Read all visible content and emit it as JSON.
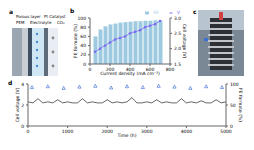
{
  "panels": {
    "a": {
      "label": "a",
      "texts": [
        "Porous layer",
        "PEM",
        "Electrolyte",
        "Pt Catalyst",
        "CO₂"
      ]
    },
    "c": {
      "label": "c"
    }
  },
  "chart_data": [
    {
      "type": "bar",
      "title": "b",
      "x_label": "Current density (mA cm⁻²)",
      "y_label": "FE formate (%)",
      "y2_label": "Cell voltage (V)",
      "x": [
        50,
        100,
        150,
        200,
        250,
        300,
        350,
        400,
        450,
        500,
        550,
        600,
        650,
        700
      ],
      "xlim": [
        0,
        800
      ],
      "xticks": [
        0,
        200,
        400,
        600,
        800
      ],
      "ylim": [
        0,
        100
      ],
      "yticks": [
        0,
        20,
        40,
        60,
        80,
        100
      ],
      "y2lim": [
        1.5,
        3
      ],
      "y2ticks": [
        1.5,
        {
          "value": 2,
          "label": "2.0"
        },
        2.5,
        {
          "value": 3,
          "label": "3.0"
        }
      ],
      "grid": false,
      "legend": "top",
      "series": [
        {
          "name": "FE",
          "type": "bar",
          "color": "#9ecae1",
          "values": [
            60,
            75,
            82,
            86,
            88,
            90,
            91,
            92,
            93,
            93,
            94,
            94,
            95,
            95
          ]
        },
        {
          "name": "V",
          "type": "line",
          "axis": "y2",
          "marker": "circle",
          "color": "#7b68ee",
          "values": [
            1.9,
            2.0,
            2.1,
            2.2,
            2.3,
            2.35,
            2.4,
            2.5,
            2.55,
            2.6,
            2.7,
            2.75,
            2.8,
            2.9
          ]
        }
      ]
    },
    {
      "type": "line",
      "title": "d",
      "x_label": "Time (h)",
      "y_label": "Cell voltage (V)",
      "y2_label": "FE formate (%)",
      "xlim": [
        0,
        5000
      ],
      "xticks": [
        0,
        1000,
        2000,
        3000,
        4000,
        5000
      ],
      "ylim": [
        0,
        4
      ],
      "yticks": [
        0,
        2,
        4
      ],
      "y2lim": [
        0,
        100
      ],
      "y2ticks": [
        0,
        50,
        100
      ],
      "grid": false,
      "series": [
        {
          "name": "Cell voltage",
          "type": "line",
          "marker": "none",
          "color": "#000000",
          "x": [
            0,
            125,
            250,
            375,
            500,
            625,
            750,
            875,
            1000,
            1125,
            1250,
            1375,
            1500,
            1625,
            1750,
            1875,
            2000,
            2125,
            2250,
            2375,
            2500,
            2625,
            2750,
            2875,
            3000,
            3125,
            3250,
            3375,
            3500,
            3625,
            3750,
            3875,
            4000,
            4125,
            4250,
            4375,
            4500,
            4625,
            4750,
            4875,
            5000
          ],
          "values": [
            2.3,
            2.2,
            2.6,
            2.2,
            2.3,
            2.2,
            2.5,
            2.2,
            2.3,
            2.2,
            2.2,
            2.6,
            2.2,
            2.3,
            2.2,
            2.2,
            2.5,
            2.2,
            2.3,
            2.2,
            2.3,
            2.7,
            2.2,
            2.2,
            2.3,
            2.2,
            2.5,
            2.2,
            2.3,
            2.2,
            2.2,
            2.6,
            2.2,
            2.3,
            2.2,
            2.4,
            2.2,
            2.2,
            2.5,
            2.2,
            2.3
          ]
        },
        {
          "name": "FE formate",
          "type": "scatter",
          "axis": "y2",
          "marker": "triangle",
          "color": "#2f5fd0",
          "x": [
            100,
            500,
            900,
            1300,
            1700,
            2100,
            2500,
            2900,
            3300,
            3700,
            4100,
            4500,
            4900
          ],
          "values": [
            92,
            94,
            90,
            93,
            95,
            91,
            94,
            92,
            95,
            93,
            90,
            94,
            92
          ]
        }
      ]
    }
  ]
}
